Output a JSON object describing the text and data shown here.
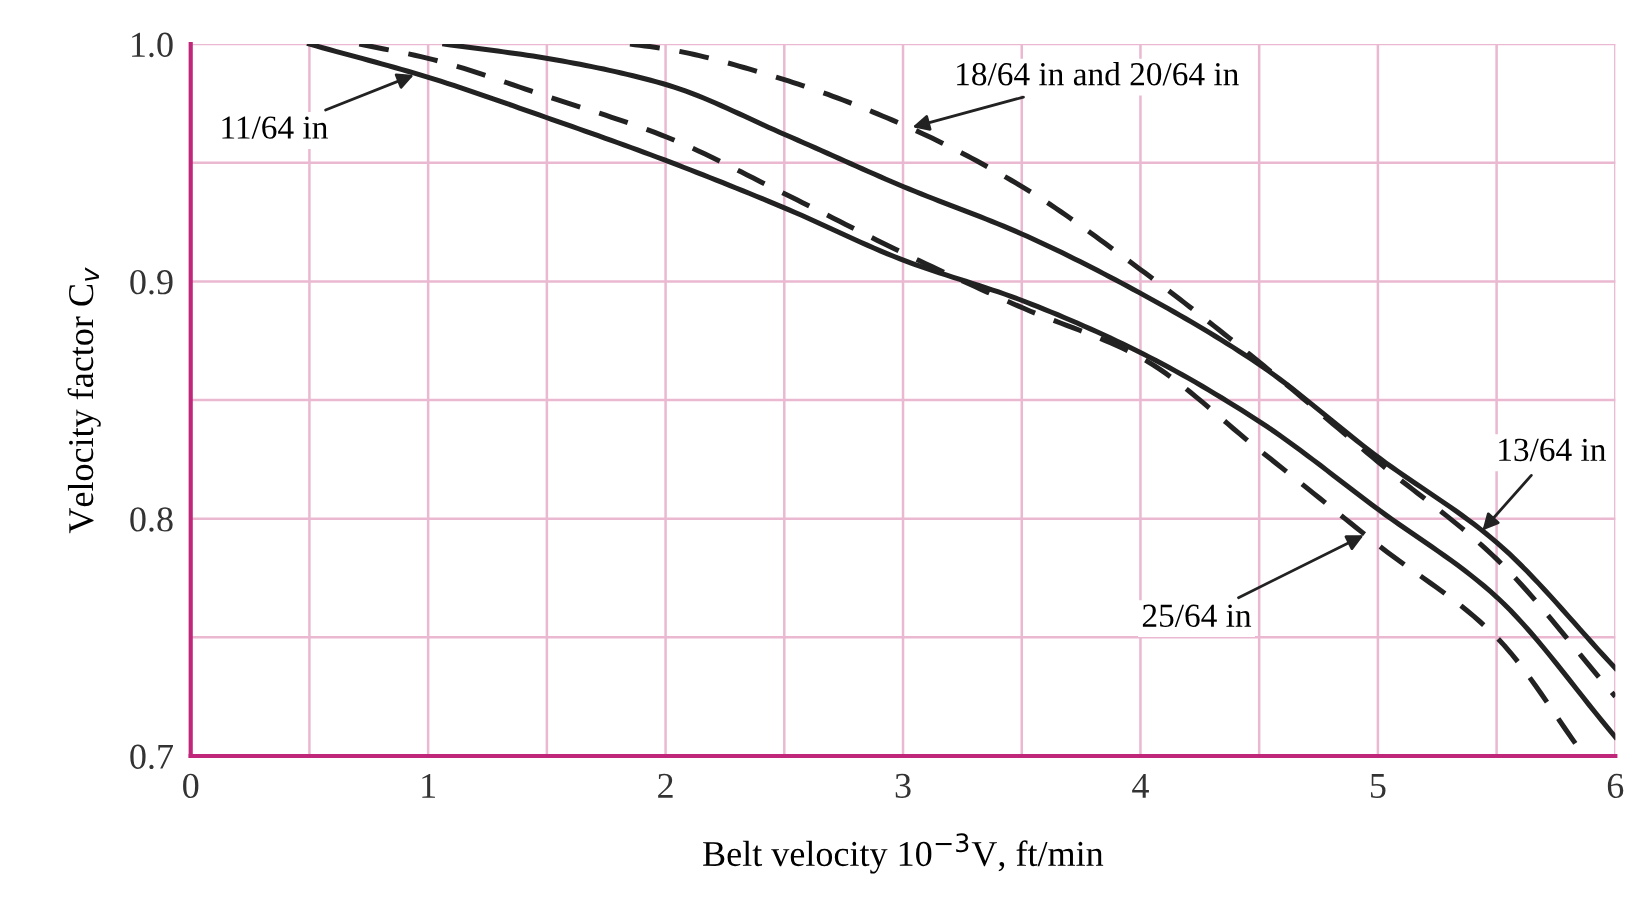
{
  "chart_data": {
    "type": "line",
    "xlabel": "Belt velocity 10$^{−3}$V, ft/min",
    "ylabel": "Velocity factor C$_{v}$",
    "xlim": [
      0,
      6
    ],
    "ylim": [
      0.7,
      1.0
    ],
    "xticks": [
      0,
      {
        "value": 0.5,
        "label": null
      },
      1,
      {
        "value": 1.5,
        "label": null
      },
      2,
      {
        "value": 2.5,
        "label": null
      },
      3,
      {
        "value": 3.5,
        "label": null
      },
      4,
      {
        "value": 4.5,
        "label": null
      },
      5,
      {
        "value": 5.5,
        "label": null
      },
      6
    ],
    "yticks": [
      0.7,
      {
        "value": 0.75,
        "label": null
      },
      0.8,
      {
        "value": 0.85,
        "label": null
      },
      0.9,
      {
        "value": 0.95,
        "label": null
      },
      {
        "value": 1.0,
        "label": "1.0"
      }
    ],
    "grid": true,
    "legend": false,
    "marker": "none",
    "series": [
      {
        "color": "#222222",
        "line_style": "solid",
        "x": [
          0.5,
          1,
          1.5,
          2,
          2.5,
          3,
          3.5,
          4,
          4.5,
          5,
          5.5,
          6
        ],
        "values": [
          1.0,
          0.986,
          0.969,
          0.951,
          0.931,
          0.909,
          0.892,
          0.87,
          0.841,
          0.804,
          0.767,
          0.708
        ]
      },
      {
        "color": "#222222",
        "line_style": "solid",
        "x": [
          1.07,
          1.5,
          2,
          2.5,
          3,
          3.5,
          4,
          4.5,
          5,
          5.5,
          6
        ],
        "values": [
          1.0,
          0.994,
          0.983,
          0.962,
          0.94,
          0.92,
          0.895,
          0.865,
          0.826,
          0.79,
          0.737
        ]
      },
      {
        "color": "#222222",
        "line_style": "dashed",
        "x": [
          1.85,
          2,
          2.5,
          3,
          3.5,
          4,
          4.5,
          5,
          5.5,
          6
        ],
        "values": [
          1.0,
          0.998,
          0.985,
          0.966,
          0.94,
          0.905,
          0.866,
          0.824,
          0.783,
          0.725
        ]
      },
      {
        "color": "#222222",
        "line_style": "dashed",
        "x": [
          0.71,
          1,
          1.5,
          2,
          2.5,
          3,
          3.5,
          4,
          4.5,
          5,
          5.5,
          5.87
        ],
        "values": [
          1.0,
          0.994,
          0.978,
          0.961,
          0.937,
          0.912,
          0.889,
          0.868,
          0.829,
          0.789,
          0.75,
          0.7
        ]
      }
    ],
    "annotations": [
      {
        "text": "11/64 in",
        "x": 0.94,
        "y": 0.987
      },
      {
        "text": "18/64 in and 20/64 in",
        "x": 3.04,
        "y": 0.965
      },
      {
        "text": "13/64 in",
        "x": 5.44,
        "y": 0.795
      },
      {
        "text": "25/64 in",
        "x": 4.94,
        "y": 0.793
      }
    ]
  }
}
